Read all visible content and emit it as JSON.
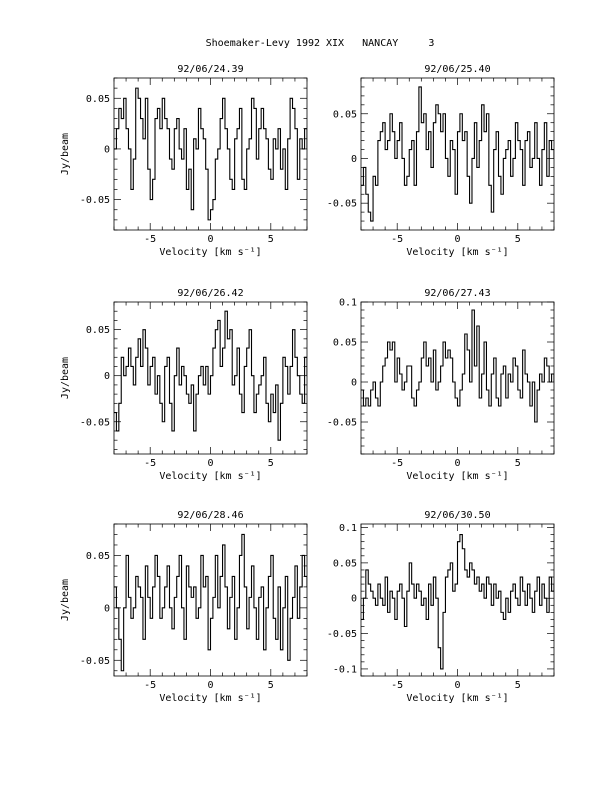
{
  "page": {
    "title": "Shoemaker-Levy 1992 XIX   NANCAY     3"
  },
  "chart_data": [
    {
      "type": "line",
      "step": true,
      "title": "92/06/24.39",
      "xlabel": "Velocity [km s⁻¹]",
      "ylabel": "Jy/beam",
      "xlim": [
        -8,
        8
      ],
      "ylim": [
        -0.08,
        0.07
      ],
      "xticks": [
        -5,
        0,
        5
      ],
      "yticks": [
        -0.05,
        0,
        0.05
      ],
      "ytick_labels": [
        "-0.05",
        "0",
        "0.05"
      ],
      "x_start": -8.0,
      "x_step": 0.2,
      "y": [
        0.0,
        0.02,
        0.04,
        0.03,
        0.05,
        0.02,
        0.0,
        -0.04,
        -0.01,
        0.06,
        0.05,
        0.03,
        0.01,
        0.05,
        -0.02,
        -0.05,
        -0.03,
        0.03,
        0.04,
        0.02,
        0.05,
        0.03,
        0.02,
        -0.01,
        -0.02,
        0.02,
        0.03,
        0.0,
        -0.01,
        0.02,
        -0.04,
        -0.02,
        -0.06,
        0.01,
        0.0,
        0.04,
        0.02,
        0.01,
        -0.02,
        -0.07,
        -0.06,
        -0.05,
        -0.01,
        0.0,
        0.03,
        0.05,
        0.02,
        0.0,
        -0.03,
        -0.04,
        0.01,
        0.02,
        0.04,
        -0.03,
        -0.04,
        0.0,
        0.01,
        0.05,
        0.04,
        -0.01,
        0.02,
        0.04,
        0.02,
        0.01,
        -0.02,
        -0.03,
        0.01,
        0.0,
        0.02,
        -0.02,
        0.0,
        -0.04,
        0.01,
        0.05,
        0.04,
        0.02,
        -0.03,
        0.01,
        0.0,
        0.02,
        0.0
      ]
    },
    {
      "type": "line",
      "step": true,
      "title": "92/06/25.40",
      "xlabel": "Velocity [km s⁻¹]",
      "ylabel": "",
      "xlim": [
        -8,
        8
      ],
      "ylim": [
        -0.08,
        0.09
      ],
      "xticks": [
        -5,
        0,
        5
      ],
      "yticks": [
        -0.05,
        0,
        0.05
      ],
      "ytick_labels": [
        "-0.05",
        "0",
        "0.05"
      ],
      "x_start": -8.0,
      "x_step": 0.2,
      "y": [
        -0.03,
        -0.01,
        -0.04,
        -0.06,
        -0.07,
        -0.02,
        -0.03,
        0.02,
        0.03,
        0.04,
        0.01,
        0.02,
        0.05,
        0.03,
        0.0,
        0.02,
        0.04,
        0.0,
        -0.03,
        -0.02,
        0.01,
        0.02,
        -0.03,
        0.03,
        0.08,
        0.04,
        0.05,
        0.01,
        0.03,
        -0.01,
        0.04,
        0.06,
        0.05,
        0.03,
        0.05,
        0.0,
        -0.02,
        0.02,
        0.01,
        -0.04,
        0.03,
        0.05,
        0.02,
        0.03,
        -0.02,
        -0.05,
        0.0,
        0.04,
        -0.01,
        0.02,
        0.06,
        0.03,
        0.05,
        -0.03,
        -0.06,
        0.01,
        0.03,
        -0.02,
        -0.04,
        0.0,
        0.01,
        0.02,
        -0.02,
        0.0,
        0.04,
        0.02,
        0.01,
        -0.03,
        0.02,
        0.03,
        -0.01,
        0.0,
        0.04,
        0.0,
        -0.03,
        0.01,
        0.04,
        -0.02,
        0.02,
        0.01,
        0.0
      ]
    },
    {
      "type": "line",
      "step": true,
      "title": "92/06/26.42",
      "xlabel": "Velocity [km s⁻¹]",
      "ylabel": "Jy/beam",
      "xlim": [
        -8,
        8
      ],
      "ylim": [
        -0.085,
        0.08
      ],
      "xticks": [
        -5,
        0,
        5
      ],
      "yticks": [
        -0.05,
        0,
        0.05
      ],
      "ytick_labels": [
        "-0.05",
        "0",
        "0.05"
      ],
      "x_start": -8.0,
      "x_step": 0.2,
      "y": [
        -0.04,
        -0.06,
        -0.03,
        0.02,
        0.0,
        0.01,
        0.03,
        0.01,
        -0.01,
        0.02,
        0.04,
        0.01,
        0.05,
        0.03,
        -0.01,
        0.01,
        0.02,
        -0.02,
        0.0,
        -0.03,
        -0.05,
        0.01,
        0.02,
        -0.03,
        -0.06,
        0.0,
        0.03,
        -0.01,
        0.01,
        0.0,
        -0.02,
        -0.03,
        -0.01,
        -0.06,
        -0.02,
        0.0,
        0.01,
        -0.01,
        0.01,
        -0.02,
        0.0,
        0.03,
        0.05,
        0.06,
        0.01,
        0.03,
        0.07,
        0.04,
        0.05,
        -0.01,
        0.0,
        0.03,
        -0.02,
        -0.04,
        0.01,
        0.03,
        0.05,
        0.0,
        -0.04,
        -0.02,
        -0.01,
        0.0,
        0.02,
        -0.03,
        -0.05,
        -0.02,
        -0.04,
        -0.01,
        -0.07,
        -0.03,
        0.02,
        0.01,
        -0.02,
        0.01,
        0.05,
        0.02,
        0.0,
        -0.02,
        -0.03,
        0.02,
        0.0
      ]
    },
    {
      "type": "line",
      "step": true,
      "title": "92/06/27.43",
      "xlabel": "Velocity [km s⁻¹]",
      "ylabel": "",
      "xlim": [
        -8,
        8
      ],
      "ylim": [
        -0.09,
        0.1
      ],
      "xticks": [
        -5,
        0,
        5
      ],
      "yticks": [
        -0.05,
        0,
        0.05,
        0.1
      ],
      "ytick_labels": [
        "-0.05",
        "0",
        "0.05",
        "0.1"
      ],
      "x_start": -8.0,
      "x_step": 0.2,
      "y": [
        -0.01,
        -0.03,
        -0.02,
        -0.03,
        -0.01,
        0.0,
        -0.02,
        -0.03,
        0.0,
        0.02,
        0.03,
        0.05,
        0.04,
        0.05,
        0.0,
        0.03,
        0.01,
        -0.01,
        0.0,
        0.02,
        0.02,
        -0.02,
        -0.03,
        -0.01,
        0.0,
        0.03,
        0.05,
        0.02,
        0.03,
        0.0,
        0.04,
        -0.01,
        0.0,
        0.02,
        0.05,
        0.03,
        0.04,
        0.03,
        0.0,
        -0.02,
        -0.03,
        -0.01,
        0.01,
        0.06,
        0.04,
        0.0,
        0.09,
        0.02,
        0.07,
        -0.02,
        0.01,
        0.05,
        -0.01,
        -0.03,
        0.01,
        0.03,
        -0.02,
        -0.03,
        0.01,
        0.02,
        -0.02,
        0.01,
        0.0,
        0.03,
        0.02,
        -0.01,
        -0.02,
        0.04,
        0.01,
        0.0,
        -0.03,
        0.0,
        -0.05,
        -0.01,
        0.01,
        0.0,
        0.03,
        0.02,
        0.0,
        0.01,
        0.0
      ]
    },
    {
      "type": "line",
      "step": true,
      "title": "92/06/28.46",
      "xlabel": "Velocity [km s⁻¹]",
      "ylabel": "Jy/beam",
      "xlim": [
        -8,
        8
      ],
      "ylim": [
        -0.065,
        0.08
      ],
      "xticks": [
        -5,
        0,
        5
      ],
      "yticks": [
        -0.05,
        0,
        0.05
      ],
      "ytick_labels": [
        "-0.05",
        "0",
        "0.05"
      ],
      "x_start": -8.0,
      "x_step": 0.2,
      "y": [
        0.02,
        0.0,
        -0.03,
        -0.06,
        0.0,
        0.05,
        0.01,
        -0.01,
        0.0,
        0.03,
        0.02,
        0.01,
        -0.03,
        0.04,
        0.01,
        -0.01,
        0.02,
        0.05,
        0.03,
        -0.01,
        0.0,
        0.02,
        0.04,
        0.0,
        -0.02,
        0.01,
        0.03,
        0.05,
        0.0,
        -0.03,
        0.04,
        0.02,
        0.01,
        0.02,
        -0.01,
        0.0,
        0.05,
        0.02,
        0.03,
        -0.04,
        -0.01,
        0.01,
        0.05,
        0.0,
        0.03,
        0.06,
        0.02,
        -0.02,
        0.01,
        0.03,
        -0.03,
        0.0,
        0.05,
        0.07,
        0.02,
        -0.02,
        0.01,
        0.04,
        0.0,
        -0.03,
        0.01,
        0.02,
        -0.04,
        0.0,
        0.03,
        0.05,
        -0.01,
        -0.03,
        0.02,
        -0.04,
        0.0,
        0.03,
        -0.05,
        -0.01,
        0.01,
        0.04,
        -0.01,
        0.02,
        0.05,
        0.03,
        0.02
      ]
    },
    {
      "type": "line",
      "step": true,
      "title": "92/06/30.50",
      "xlabel": "Velocity [km s⁻¹]",
      "ylabel": "",
      "xlim": [
        -8,
        8
      ],
      "ylim": [
        -0.11,
        0.105
      ],
      "xticks": [
        -5,
        0,
        5
      ],
      "yticks": [
        -0.1,
        -0.05,
        0,
        0.05,
        0.1
      ],
      "ytick_labels": [
        "-0.1",
        "-0.05",
        "0",
        "0.05",
        "0.1"
      ],
      "x_start": -8.0,
      "x_step": 0.2,
      "y": [
        -0.03,
        0.0,
        0.04,
        0.02,
        0.01,
        0.0,
        -0.01,
        0.02,
        0.0,
        -0.01,
        0.03,
        -0.02,
        0.01,
        0.0,
        -0.03,
        0.01,
        0.02,
        0.0,
        -0.04,
        0.01,
        0.05,
        0.02,
        0.0,
        0.02,
        0.01,
        -0.01,
        0.0,
        -0.03,
        0.02,
        -0.01,
        0.03,
        0.0,
        -0.07,
        -0.1,
        -0.02,
        0.03,
        0.04,
        0.05,
        0.01,
        0.02,
        0.08,
        0.09,
        0.07,
        0.04,
        0.03,
        0.05,
        0.04,
        0.02,
        0.03,
        0.01,
        0.02,
        0.0,
        0.03,
        0.02,
        -0.01,
        0.02,
        0.0,
        0.01,
        -0.02,
        -0.03,
        0.0,
        -0.02,
        0.01,
        0.02,
        0.0,
        -0.01,
        0.03,
        0.01,
        -0.01,
        0.02,
        0.0,
        -0.02,
        0.01,
        0.03,
        -0.01,
        0.02,
        0.0,
        -0.02,
        0.03,
        0.01,
        0.02
      ]
    }
  ]
}
